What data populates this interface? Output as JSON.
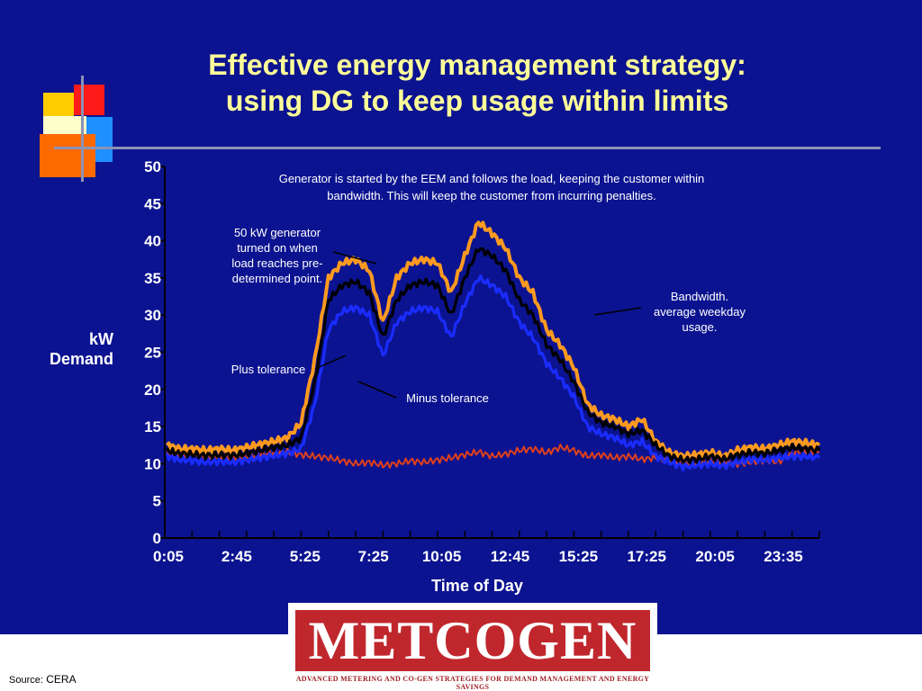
{
  "slide": {
    "title_line1": "Effective energy management strategy:",
    "title_line2": "using DG to keep usage within limits",
    "source_label": "Source:",
    "source_value": "CERA",
    "background_color": "#0c1390",
    "title_color": "#ffff99"
  },
  "logo": {
    "name": "METCOGEN",
    "tagline": "ADVANCED METERING AND CO-GEN STRATEGIES FOR DEMAND MANAGEMENT AND ENERGY SAVINGS",
    "color": "#c0272d"
  },
  "annotations": {
    "top_note_line1": "Generator is started by the EEM and follows the load, keeping the customer within",
    "top_note_line2": "bandwidth. This will keep the customer from incurring penalties.",
    "gen_note": [
      "50 kW generator",
      "turned on when",
      "load reaches pre-",
      "determined point."
    ],
    "bandwidth_note": [
      "Bandwidth.",
      "average weekday",
      "usage."
    ],
    "plus_tolerance": "Plus tolerance",
    "minus_tolerance": "Minus tolerance"
  },
  "chart_data": {
    "type": "line",
    "xlabel": "Time of Day",
    "ylabel_line1": "kW",
    "ylabel_line2": "Demand",
    "ylim": [
      0,
      50
    ],
    "yticks": [
      0,
      5,
      10,
      15,
      20,
      25,
      30,
      35,
      40,
      45,
      50
    ],
    "xticks": [
      "0:05",
      "2:45",
      "5:25",
      "7:25",
      "10:05",
      "12:45",
      "15:25",
      "17:25",
      "20:05",
      "23:35"
    ],
    "x_hours": [
      0.0833,
      0.5,
      1,
      1.5,
      2,
      2.5,
      3,
      3.5,
      4,
      4.5,
      5,
      5.5,
      6,
      6.5,
      7,
      7.5,
      8,
      8.5,
      9,
      9.5,
      10,
      10.5,
      11,
      11.5,
      12,
      12.5,
      13,
      13.5,
      14,
      14.5,
      15,
      15.5,
      16,
      16.5,
      17,
      17.5,
      18,
      18.5,
      19,
      19.5,
      20,
      20.5,
      21,
      21.5,
      22,
      22.5,
      23,
      23.5,
      24
    ],
    "series": [
      {
        "color": "#ff9a1f",
        "values": [
          12.5,
          12.0,
          12.0,
          11.8,
          12.0,
          11.8,
          12.2,
          12.6,
          13.0,
          13.5,
          15.5,
          24,
          35,
          37,
          37.5,
          36,
          29,
          35,
          37,
          37.5,
          37,
          33,
          38,
          42.5,
          41,
          39,
          35,
          33,
          28,
          26,
          23,
          18,
          16.5,
          16,
          15,
          16,
          13,
          11.5,
          11.0,
          11.2,
          11.5,
          11.0,
          11.8,
          12.2,
          12.0,
          12.5,
          13.0,
          12.8,
          12.5
        ]
      },
      {
        "color": "#000000",
        "values": [
          11.8,
          11.4,
          11.3,
          11.1,
          11.2,
          11.1,
          11.4,
          11.8,
          12.2,
          12.5,
          13.5,
          21,
          32,
          34,
          34.5,
          33,
          27,
          32,
          34,
          34.5,
          34,
          30,
          35,
          39,
          38,
          36,
          32,
          30,
          26,
          24,
          21,
          17,
          15.5,
          15,
          14,
          14.5,
          12.5,
          11.0,
          10.5,
          10.6,
          11.0,
          10.6,
          11.2,
          11.5,
          11.4,
          11.8,
          12.2,
          12.0,
          11.8
        ]
      },
      {
        "color": "#1a2cff",
        "values": [
          11.0,
          10.6,
          10.4,
          10.2,
          10.3,
          10.2,
          10.5,
          10.8,
          11.1,
          11.4,
          12.0,
          18,
          28,
          30.5,
          31,
          30,
          24.5,
          29,
          30.5,
          31,
          30.5,
          27,
          31.5,
          35,
          34,
          32.5,
          29,
          27,
          23.5,
          21.5,
          19,
          15,
          14,
          13.5,
          12.5,
          13,
          11.0,
          10.2,
          9.6,
          9.8,
          10.0,
          9.7,
          10.2,
          10.6,
          10.5,
          10.8,
          11.0,
          11.0,
          10.8
        ]
      },
      {
        "color": "#e0401a",
        "values": [
          11.5,
          11.3,
          11.4,
          11.2,
          11.0,
          10.9,
          11.0,
          11.3,
          11.5,
          11.6,
          11.2,
          11.0,
          10.8,
          10.4,
          10.0,
          10.2,
          9.8,
          10.0,
          10.4,
          10.2,
          10.5,
          10.8,
          11.2,
          11.6,
          11.0,
          11.3,
          11.8,
          12.0,
          11.5,
          12.2,
          11.8,
          11.0,
          11.2,
          10.8,
          11.0,
          10.6,
          10.8,
          10.5,
          10.2,
          10.0,
          10.4,
          10.3,
          10.0,
          10.2,
          10.5,
          10.2,
          11.5,
          11.8,
          11.6
        ]
      }
    ]
  }
}
